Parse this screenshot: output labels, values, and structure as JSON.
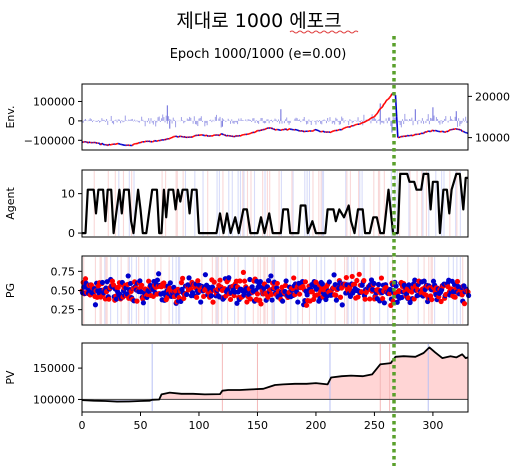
{
  "window": {
    "title": "제대로 1000 에포크",
    "subtitle": "Epoch 1000/1000 (e=0.00)"
  },
  "colors": {
    "price_up": "#ff0000",
    "price_down": "#0000cc",
    "buy": "#ff0000",
    "sell": "#0000cc",
    "volume": "#8080e0",
    "hold_fill": "#ffd5d5",
    "agent_line": "#000000",
    "pv_line": "#000000",
    "baseline": "#555555",
    "marker_line": "#5aa02c"
  },
  "chart_data": [
    {
      "type": "line",
      "panel": "env",
      "ylabel": "Env.",
      "x_range": [
        0,
        330
      ],
      "ylim_left": [
        -150000,
        190000
      ],
      "yticks_left": [
        "100000",
        "0",
        "−100000"
      ],
      "ylim_right": [
        7000,
        23000
      ],
      "yticks_right": [
        "20000",
        "10000"
      ],
      "price_series": [
        [
          0,
          9000
        ],
        [
          10,
          8800
        ],
        [
          20,
          8200
        ],
        [
          30,
          8600
        ],
        [
          40,
          8000
        ],
        [
          50,
          8900
        ],
        [
          60,
          9100
        ],
        [
          70,
          9400
        ],
        [
          75,
          9800
        ],
        [
          80,
          10300
        ],
        [
          90,
          10000
        ],
        [
          100,
          10600
        ],
        [
          110,
          10400
        ],
        [
          120,
          10800
        ],
        [
          130,
          10200
        ],
        [
          140,
          10700
        ],
        [
          150,
          11600
        ],
        [
          160,
          12300
        ],
        [
          170,
          11900
        ],
        [
          180,
          12100
        ],
        [
          190,
          11400
        ],
        [
          200,
          11800
        ],
        [
          210,
          11300
        ],
        [
          220,
          11900
        ],
        [
          230,
          12800
        ],
        [
          240,
          13600
        ],
        [
          250,
          15000
        ],
        [
          258,
          18000
        ],
        [
          265,
          20500
        ],
        [
          268,
          20200
        ],
        [
          270,
          10000
        ],
        [
          280,
          10500
        ],
        [
          290,
          11000
        ],
        [
          300,
          11800
        ],
        [
          310,
          11400
        ],
        [
          320,
          12200
        ],
        [
          330,
          11000
        ]
      ],
      "volume_spikes": [
        [
          73,
          80000
        ],
        [
          75,
          -40000
        ],
        [
          120,
          -30000
        ],
        [
          170,
          60000
        ],
        [
          255,
          90000
        ],
        [
          265,
          -60000
        ],
        [
          285,
          60000
        ],
        [
          300,
          70000
        ],
        [
          320,
          50000
        ]
      ]
    },
    {
      "type": "line",
      "panel": "agent",
      "ylabel": "Agent",
      "x_range": [
        0,
        330
      ],
      "ylim": [
        -1,
        16
      ],
      "yticks": [
        "10",
        "0"
      ],
      "series": [
        [
          0,
          0
        ],
        [
          3,
          0
        ],
        [
          5,
          11
        ],
        [
          10,
          11
        ],
        [
          12,
          5
        ],
        [
          14,
          11
        ],
        [
          18,
          11
        ],
        [
          20,
          3
        ],
        [
          22,
          11
        ],
        [
          25,
          11
        ],
        [
          27,
          0
        ],
        [
          32,
          11
        ],
        [
          34,
          5
        ],
        [
          36,
          11
        ],
        [
          40,
          11
        ],
        [
          42,
          3
        ],
        [
          44,
          0
        ],
        [
          48,
          11
        ],
        [
          50,
          6
        ],
        [
          52,
          0
        ],
        [
          55,
          0
        ],
        [
          60,
          11
        ],
        [
          64,
          11
        ],
        [
          66,
          0
        ],
        [
          68,
          0
        ],
        [
          70,
          11
        ],
        [
          72,
          4
        ],
        [
          74,
          11
        ],
        [
          78,
          11
        ],
        [
          80,
          6
        ],
        [
          82,
          11
        ],
        [
          84,
          8
        ],
        [
          86,
          11
        ],
        [
          90,
          11
        ],
        [
          92,
          5
        ],
        [
          94,
          11
        ],
        [
          98,
          11
        ],
        [
          100,
          0
        ],
        [
          115,
          0
        ],
        [
          118,
          5
        ],
        [
          121,
          0
        ],
        [
          124,
          5
        ],
        [
          127,
          0
        ],
        [
          131,
          4
        ],
        [
          134,
          0
        ],
        [
          138,
          6
        ],
        [
          141,
          6
        ],
        [
          144,
          0
        ],
        [
          150,
          0
        ],
        [
          153,
          4
        ],
        [
          156,
          0
        ],
        [
          160,
          5
        ],
        [
          163,
          0
        ],
        [
          170,
          0
        ],
        [
          172,
          6
        ],
        [
          176,
          6
        ],
        [
          178,
          0
        ],
        [
          185,
          0
        ],
        [
          187,
          7
        ],
        [
          191,
          7
        ],
        [
          193,
          0
        ],
        [
          197,
          3
        ],
        [
          200,
          0
        ],
        [
          208,
          0
        ],
        [
          210,
          6
        ],
        [
          215,
          6
        ],
        [
          217,
          3
        ],
        [
          220,
          6
        ],
        [
          224,
          4
        ],
        [
          228,
          7
        ],
        [
          230,
          3
        ],
        [
          233,
          0
        ],
        [
          236,
          6
        ],
        [
          240,
          6
        ],
        [
          242,
          0
        ],
        [
          246,
          0
        ],
        [
          249,
          4
        ],
        [
          252,
          4
        ],
        [
          255,
          0
        ],
        [
          258,
          0
        ],
        [
          262,
          11
        ],
        [
          266,
          0
        ],
        [
          268,
          0
        ],
        [
          270,
          0
        ],
        [
          272,
          15
        ],
        [
          278,
          15
        ],
        [
          280,
          13
        ],
        [
          284,
          13
        ],
        [
          286,
          11
        ],
        [
          290,
          11
        ],
        [
          292,
          15
        ],
        [
          296,
          15
        ],
        [
          298,
          6
        ],
        [
          300,
          13
        ],
        [
          304,
          13
        ],
        [
          306,
          0
        ],
        [
          309,
          11
        ],
        [
          312,
          11
        ],
        [
          314,
          5
        ],
        [
          316,
          11
        ],
        [
          320,
          15
        ],
        [
          323,
          15
        ],
        [
          326,
          6
        ],
        [
          328,
          14
        ],
        [
          330,
          14
        ]
      ]
    },
    {
      "type": "scatter",
      "panel": "pg",
      "ylabel": "PG",
      "x_range": [
        0,
        330
      ],
      "ylim": [
        0.05,
        0.95
      ],
      "yticks": [
        "0.75",
        "0.50",
        "0.25"
      ],
      "point_count": 660,
      "mean": 0.5
    },
    {
      "type": "line",
      "panel": "pv",
      "ylabel": "PV",
      "x_range": [
        0,
        330
      ],
      "xticks": [
        "0",
        "50",
        "100",
        "150",
        "200",
        "250",
        "300"
      ],
      "ylim": [
        80000,
        190000
      ],
      "yticks": [
        "150000",
        "100000"
      ],
      "baseline": 100000,
      "series": [
        [
          0,
          99000
        ],
        [
          10,
          98000
        ],
        [
          20,
          97500
        ],
        [
          30,
          96500
        ],
        [
          40,
          96800
        ],
        [
          50,
          97500
        ],
        [
          58,
          98000
        ],
        [
          60,
          99500
        ],
        [
          66,
          100000
        ],
        [
          68,
          108000
        ],
        [
          75,
          111000
        ],
        [
          85,
          109000
        ],
        [
          95,
          109000
        ],
        [
          105,
          108000
        ],
        [
          118,
          108500
        ],
        [
          120,
          114000
        ],
        [
          125,
          115000
        ],
        [
          135,
          115000
        ],
        [
          145,
          116000
        ],
        [
          155,
          117000
        ],
        [
          160,
          120000
        ],
        [
          165,
          123000
        ],
        [
          172,
          124000
        ],
        [
          182,
          125000
        ],
        [
          192,
          125000
        ],
        [
          200,
          126000
        ],
        [
          210,
          124000
        ],
        [
          213,
          135000
        ],
        [
          222,
          137000
        ],
        [
          230,
          138000
        ],
        [
          240,
          137000
        ],
        [
          248,
          140000
        ],
        [
          255,
          156000
        ],
        [
          264,
          158000
        ],
        [
          268,
          168000
        ],
        [
          275,
          169000
        ],
        [
          285,
          168000
        ],
        [
          292,
          174000
        ],
        [
          297,
          183000
        ],
        [
          302,
          175000
        ],
        [
          308,
          166000
        ],
        [
          315,
          169000
        ],
        [
          320,
          167000
        ],
        [
          325,
          172000
        ],
        [
          328,
          166000
        ],
        [
          330,
          167000
        ]
      ]
    }
  ]
}
